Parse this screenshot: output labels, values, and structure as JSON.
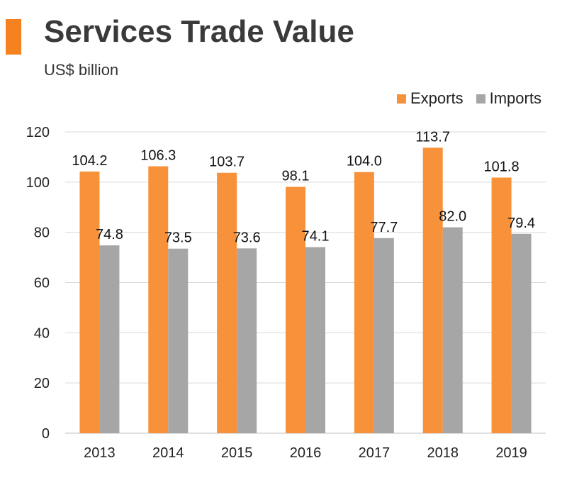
{
  "header": {
    "title": "Services Trade Value",
    "subtitle": "US$ billion"
  },
  "colors": {
    "accent": "#f5821f",
    "exports": "#f7923a",
    "imports": "#a6a6a6",
    "grid": "#d9d9d9"
  },
  "chart_data": {
    "type": "bar",
    "title": "Services Trade Value",
    "subtitle": "US$ billion",
    "xlabel": "",
    "ylabel": "",
    "ylim": [
      0,
      120
    ],
    "yticks": [
      "0",
      "20",
      "40",
      "60",
      "80",
      "100",
      "120"
    ],
    "grid": true,
    "legend_position": "top-right",
    "categories": [
      "2013",
      "2014",
      "2015",
      "2016",
      "2017",
      "2018",
      "2019"
    ],
    "series": [
      {
        "name": "Exports",
        "values": [
          104.2,
          106.3,
          103.7,
          98.1,
          104.0,
          113.7,
          101.8
        ],
        "labels": [
          "104.2",
          "106.3",
          "103.7",
          "98.1",
          "104.0",
          "113.7",
          "101.8"
        ]
      },
      {
        "name": "Imports",
        "values": [
          74.8,
          73.5,
          73.6,
          74.1,
          77.7,
          82.0,
          79.4
        ],
        "labels": [
          "74.8",
          "73.5",
          "73.6",
          "74.1",
          "77.7",
          "82.0",
          "79.4"
        ]
      }
    ]
  }
}
